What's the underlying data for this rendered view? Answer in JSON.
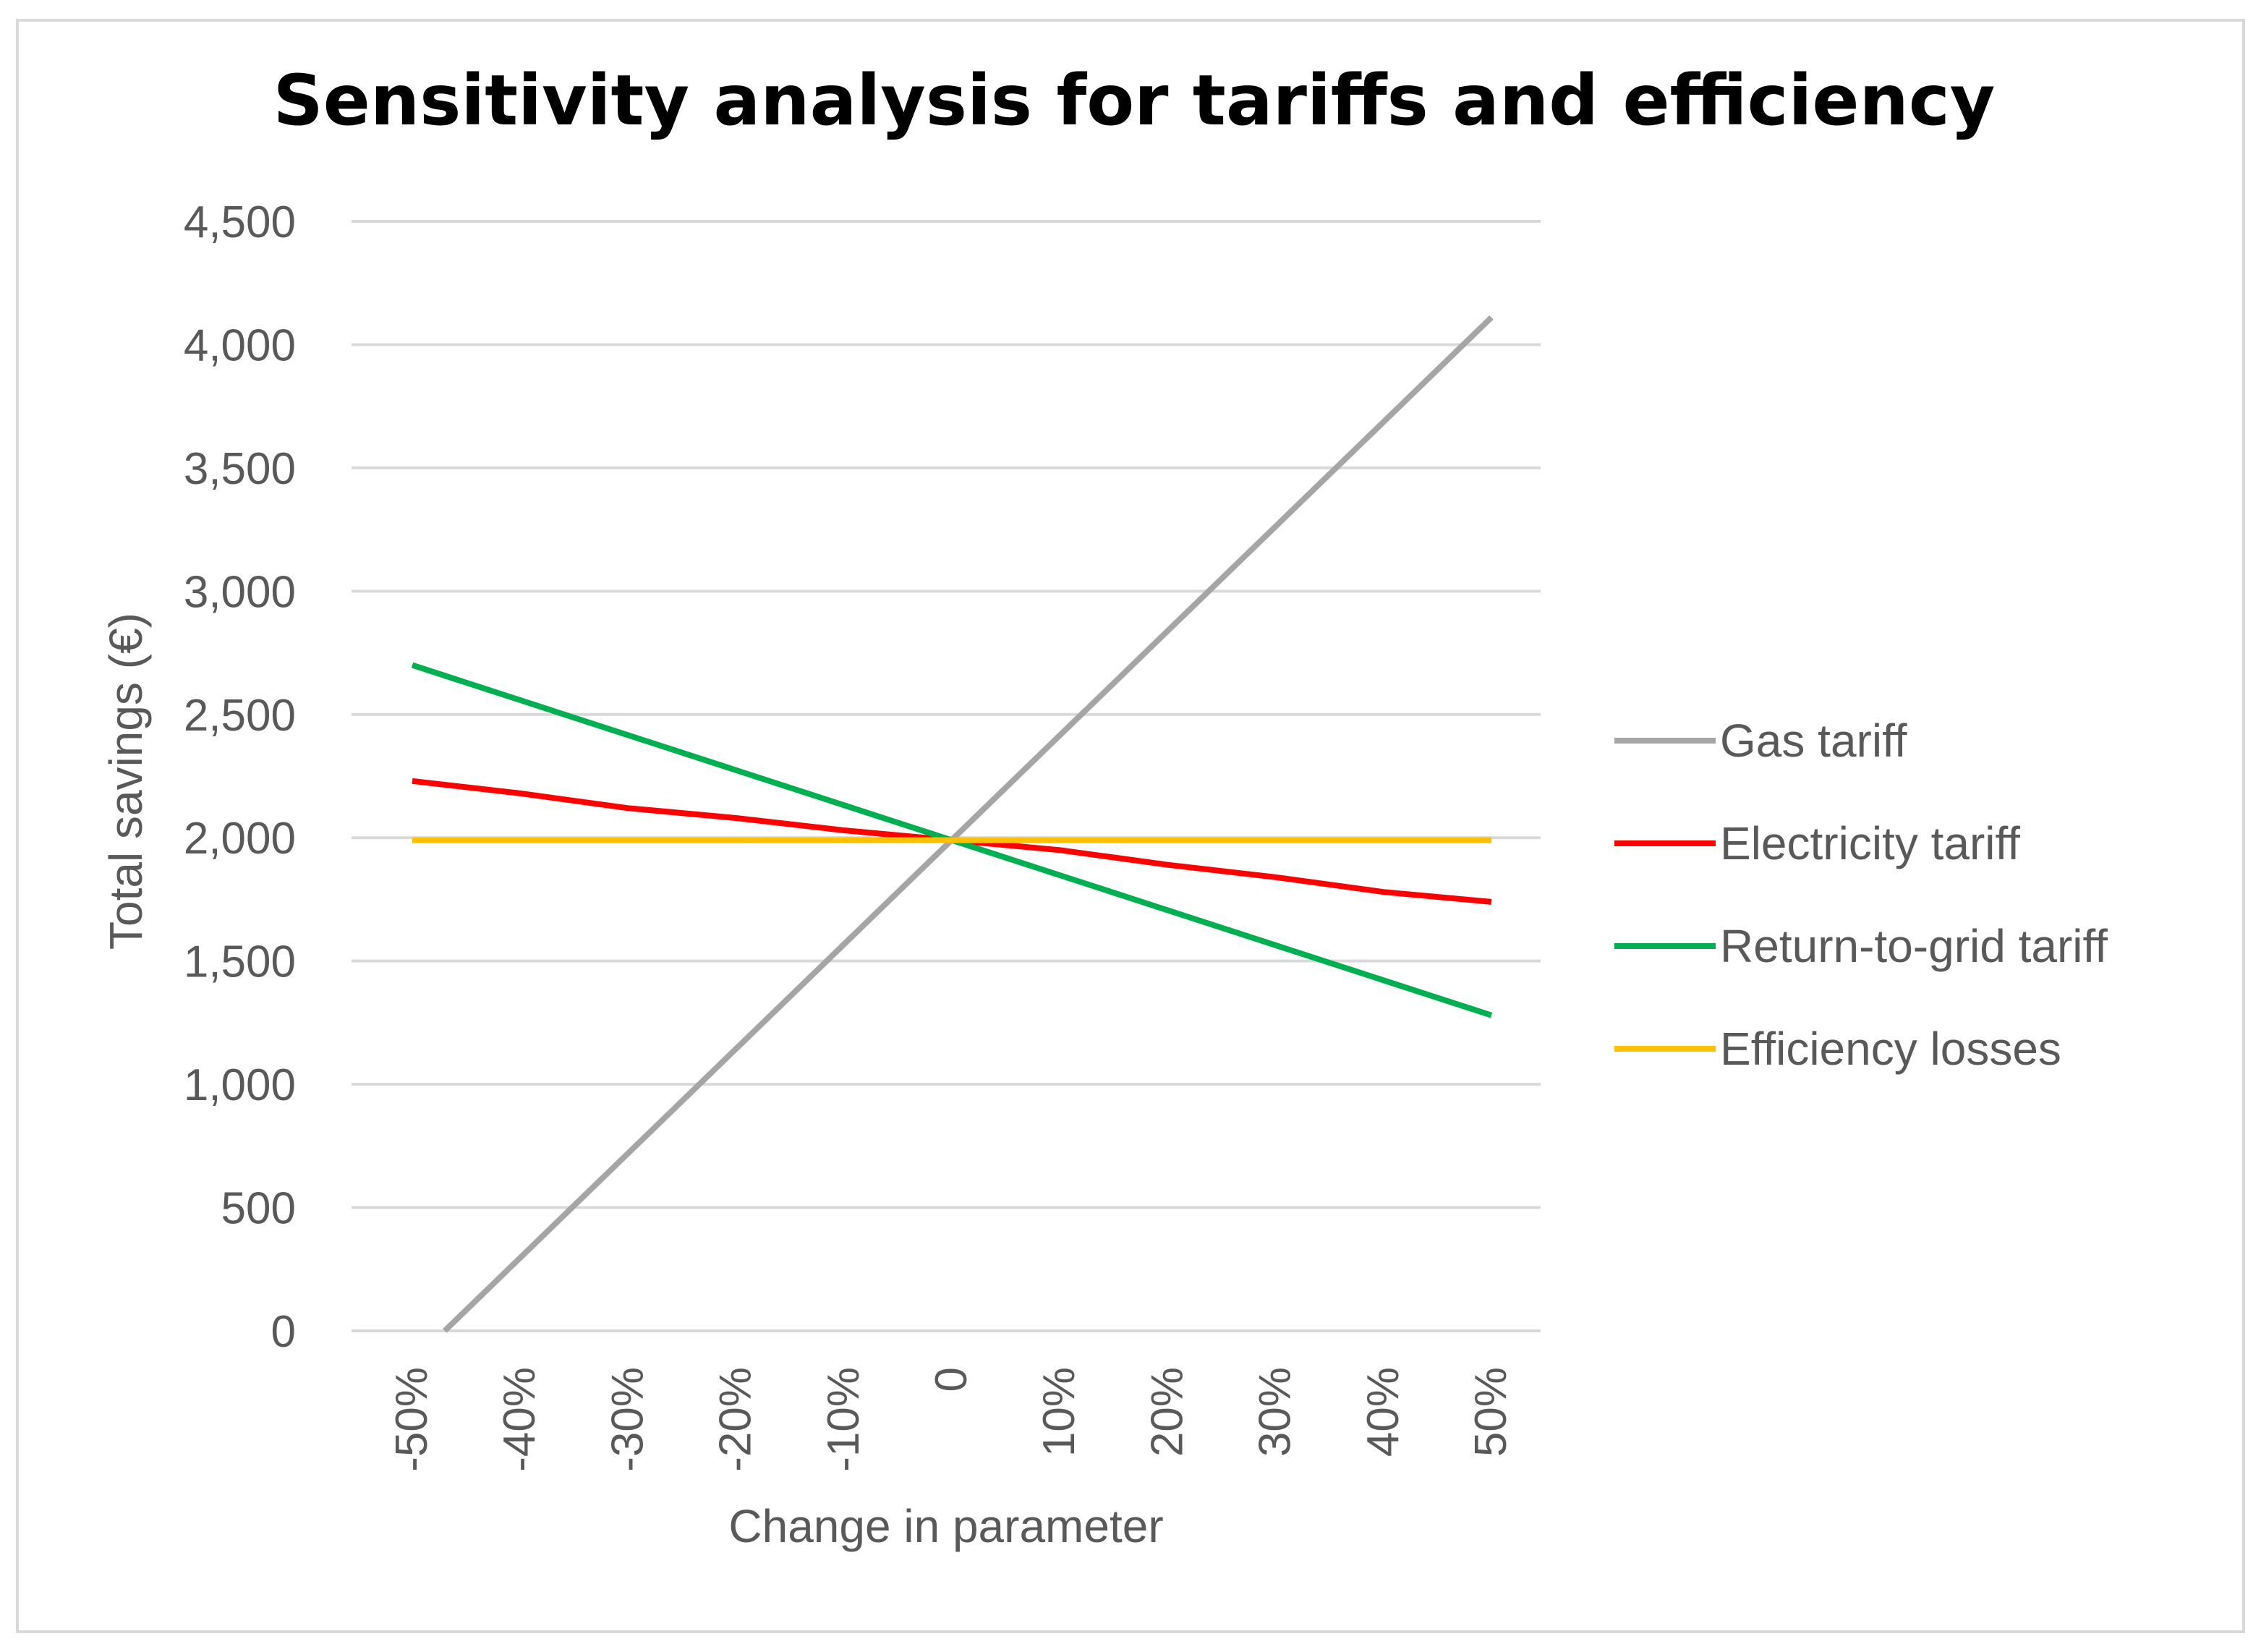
{
  "chart_data": {
    "type": "line",
    "title": "Sensitivity analysis for tariffs and efficiency",
    "xlabel": "Change in parameter",
    "ylabel": "Total savings (€)",
    "categories": [
      "-50%",
      "-40%",
      "-30%",
      "-20%",
      "-10%",
      "0",
      "10%",
      "20%",
      "30%",
      "40%",
      "50%"
    ],
    "y_ticks": [
      "0",
      "500",
      "1,000",
      "1,500",
      "2,000",
      "2,500",
      "3,000",
      "3,500",
      "4,000",
      "4,500"
    ],
    "y_tick_values": [
      0,
      500,
      1000,
      1500,
      2000,
      2500,
      3000,
      3500,
      4000,
      4500
    ],
    "ylim": [
      0,
      4500
    ],
    "grid": true,
    "legend_position": "right",
    "series": [
      {
        "name": "Gas tariff",
        "color": "#a5a5a5",
        "x": [
          -47,
          50
        ],
        "values": [
          0,
          4110
        ]
      },
      {
        "name": "Electricity tariff",
        "color": "#ff0000",
        "x": [
          -50,
          -40,
          -30,
          -20,
          -10,
          0,
          10,
          20,
          30,
          40,
          50
        ],
        "values": [
          2230,
          2180,
          2120,
          2080,
          2030,
          1990,
          1950,
          1890,
          1840,
          1780,
          1740
        ]
      },
      {
        "name": "Return-to-grid tariff",
        "color": "#00b050",
        "x": [
          -50,
          50
        ],
        "values": [
          2700,
          1280
        ]
      },
      {
        "name": "Efficiency losses",
        "color": "#ffc000",
        "x": [
          -50,
          50
        ],
        "values": [
          1990,
          1990
        ]
      }
    ]
  }
}
